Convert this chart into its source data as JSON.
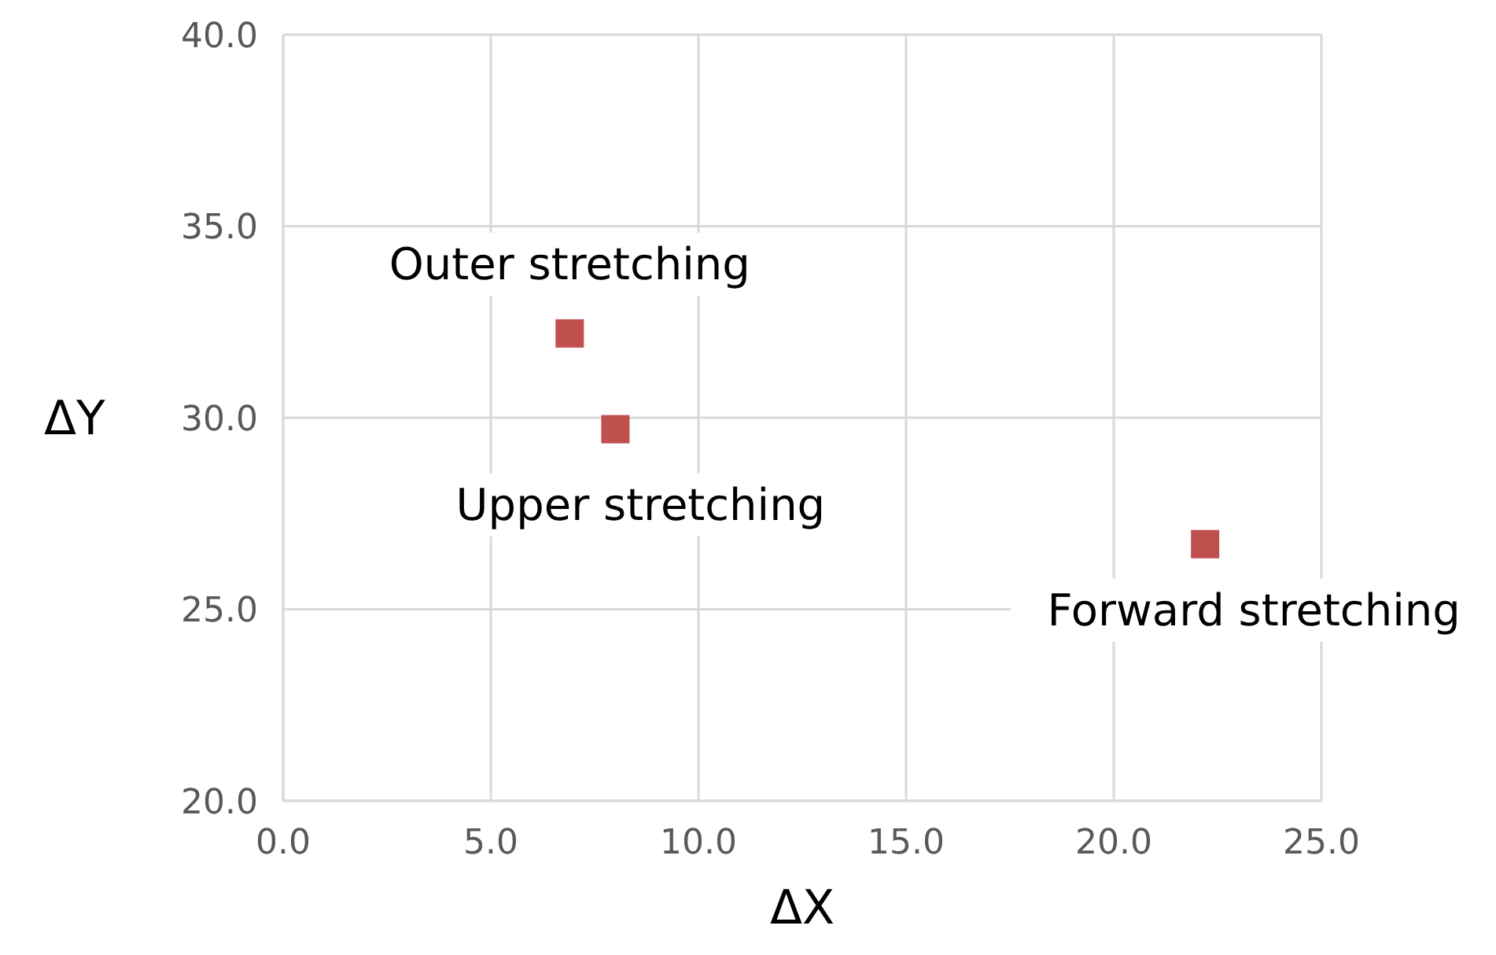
{
  "chart_data": {
    "type": "scatter",
    "xlabel": "ΔX",
    "ylabel": "ΔY",
    "x": [
      6.9,
      8.0,
      22.2
    ],
    "series": [
      {
        "color": "#c0504d",
        "values": [
          32.2,
          29.7,
          26.7
        ]
      }
    ],
    "marker": "square",
    "grid": true,
    "legend": false,
    "xlim": [
      0,
      25
    ],
    "ylim": [
      20,
      40
    ],
    "xticks": [
      {
        "value": 0,
        "label": "0.0"
      },
      {
        "value": 5,
        "label": "5.0"
      },
      {
        "value": 10,
        "label": "10.0"
      },
      {
        "value": 15,
        "label": "15.0"
      },
      {
        "value": 20,
        "label": "20.0"
      },
      {
        "value": 25,
        "label": "25.0"
      }
    ],
    "yticks": [
      {
        "value": 20,
        "label": "20.0"
      },
      {
        "value": 25,
        "label": "25.0"
      },
      {
        "value": 30,
        "label": "30.0"
      },
      {
        "value": 35,
        "label": "35.0"
      },
      {
        "value": 40,
        "label": "40.0"
      }
    ],
    "annotations": [
      {
        "text": "Outer stretching",
        "x": 6.9,
        "y": 32.2
      },
      {
        "text": "Upper stretching",
        "x": 8.0,
        "y": 29.7
      },
      {
        "text": "Forward stretching",
        "x": 22.2,
        "y": 26.7
      }
    ]
  }
}
